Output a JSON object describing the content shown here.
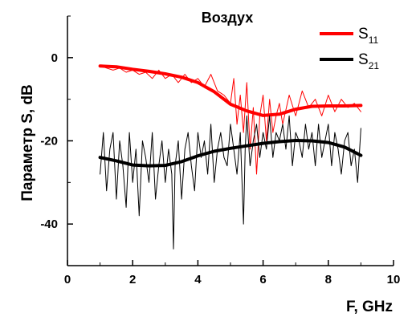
{
  "chart_data": {
    "type": "line",
    "title": "Воздух",
    "xlabel": "F, GHz",
    "ylabel": "Параметр S, dB",
    "xlim": [
      0,
      10
    ],
    "ylim": [
      -50,
      10
    ],
    "xticks": [
      0,
      2,
      4,
      6,
      8,
      10
    ],
    "yticks": [
      -40,
      -20,
      0
    ],
    "grid": false,
    "legend_position": "top-right",
    "legend": [
      {
        "main": "S",
        "sub": "11",
        "color": "#ff0000"
      },
      {
        "main": "S",
        "sub": "21",
        "color": "#000000"
      }
    ],
    "series": [
      {
        "name": "S11",
        "color": "#ff0000",
        "style": "raw",
        "x": [
          1.0,
          1.2,
          1.4,
          1.6,
          1.8,
          2.0,
          2.2,
          2.4,
          2.6,
          2.8,
          3.0,
          3.2,
          3.4,
          3.6,
          3.8,
          4.0,
          4.2,
          4.4,
          4.6,
          4.8,
          5.0,
          5.1,
          5.2,
          5.3,
          5.4,
          5.5,
          5.6,
          5.7,
          5.8,
          5.9,
          6.0,
          6.1,
          6.2,
          6.3,
          6.4,
          6.5,
          6.6,
          6.8,
          7.0,
          7.2,
          7.4,
          7.6,
          7.8,
          8.0,
          8.2,
          8.4,
          8.6,
          8.8,
          9.0
        ],
        "y": [
          -2,
          -2.5,
          -3,
          -2.5,
          -3.5,
          -3,
          -4,
          -3.5,
          -5,
          -3,
          -5,
          -4,
          -6,
          -4,
          -6,
          -5,
          -7,
          -4,
          -8,
          -9,
          -11,
          -5,
          -16,
          -9,
          -18,
          -6,
          -22,
          -12,
          -28,
          -14,
          -9,
          -20,
          -10,
          -18,
          -14,
          -11,
          -16,
          -9,
          -14,
          -8,
          -12,
          -10,
          -14,
          -9,
          -13,
          -10,
          -12,
          -11,
          -13
        ]
      },
      {
        "name": "S11 fit",
        "color": "#ff0000",
        "style": "smooth",
        "x": [
          1,
          1.5,
          2,
          2.5,
          3,
          3.5,
          4,
          4.5,
          5,
          5.5,
          6,
          6.5,
          7,
          7.5,
          8,
          8.5,
          9
        ],
        "y": [
          -2,
          -2.2,
          -2.8,
          -3.3,
          -3.9,
          -4.7,
          -6.0,
          -8.2,
          -11.2,
          -12.8,
          -13.9,
          -13.6,
          -12.4,
          -11.7,
          -11.6,
          -11.6,
          -11.5
        ]
      },
      {
        "name": "S21",
        "color": "#000000",
        "style": "raw",
        "x": [
          1.0,
          1.1,
          1.2,
          1.3,
          1.4,
          1.5,
          1.6,
          1.7,
          1.8,
          1.9,
          2.0,
          2.1,
          2.2,
          2.3,
          2.4,
          2.5,
          2.6,
          2.7,
          2.8,
          2.9,
          3.0,
          3.1,
          3.2,
          3.25,
          3.3,
          3.4,
          3.5,
          3.6,
          3.7,
          3.8,
          3.9,
          4.0,
          4.1,
          4.2,
          4.3,
          4.4,
          4.5,
          4.6,
          4.7,
          4.8,
          4.9,
          5.0,
          5.1,
          5.2,
          5.3,
          5.4,
          5.45,
          5.5,
          5.6,
          5.7,
          5.8,
          5.9,
          6.0,
          6.1,
          6.2,
          6.3,
          6.4,
          6.5,
          6.6,
          6.7,
          6.8,
          6.9,
          7.0,
          7.1,
          7.2,
          7.3,
          7.4,
          7.5,
          7.6,
          7.7,
          7.8,
          7.9,
          8.0,
          8.1,
          8.2,
          8.3,
          8.4,
          8.5,
          8.6,
          8.7,
          8.8,
          8.9,
          9.0
        ],
        "y": [
          -28,
          -18,
          -32,
          -22,
          -18,
          -34,
          -20,
          -26,
          -36,
          -18,
          -30,
          -22,
          -38,
          -20,
          -24,
          -30,
          -18,
          -34,
          -26,
          -20,
          -30,
          -22,
          -28,
          -46,
          -26,
          -20,
          -34,
          -22,
          -18,
          -26,
          -32,
          -18,
          -24,
          -20,
          -28,
          -16,
          -30,
          -22,
          -18,
          -24,
          -26,
          -16,
          -22,
          -28,
          -18,
          -40,
          -22,
          -14,
          -26,
          -20,
          -16,
          -24,
          -18,
          -22,
          -14,
          -24,
          -18,
          -20,
          -16,
          -22,
          -14,
          -26,
          -18,
          -20,
          -24,
          -16,
          -22,
          -18,
          -26,
          -16,
          -24,
          -20,
          -16,
          -26,
          -18,
          -22,
          -28,
          -20,
          -18,
          -26,
          -22,
          -30,
          -17
        ]
      },
      {
        "name": "S21 fit",
        "color": "#000000",
        "style": "smooth",
        "x": [
          1,
          1.5,
          2,
          2.5,
          3,
          3.5,
          4,
          4.5,
          5,
          5.5,
          6,
          6.5,
          7,
          7.5,
          8,
          8.5,
          9
        ],
        "y": [
          -24,
          -24.8,
          -25.8,
          -26,
          -25.9,
          -25,
          -23.6,
          -22.5,
          -21.8,
          -21.2,
          -20.6,
          -20.2,
          -19.9,
          -20,
          -20.4,
          -21.5,
          -23.5
        ]
      }
    ]
  }
}
